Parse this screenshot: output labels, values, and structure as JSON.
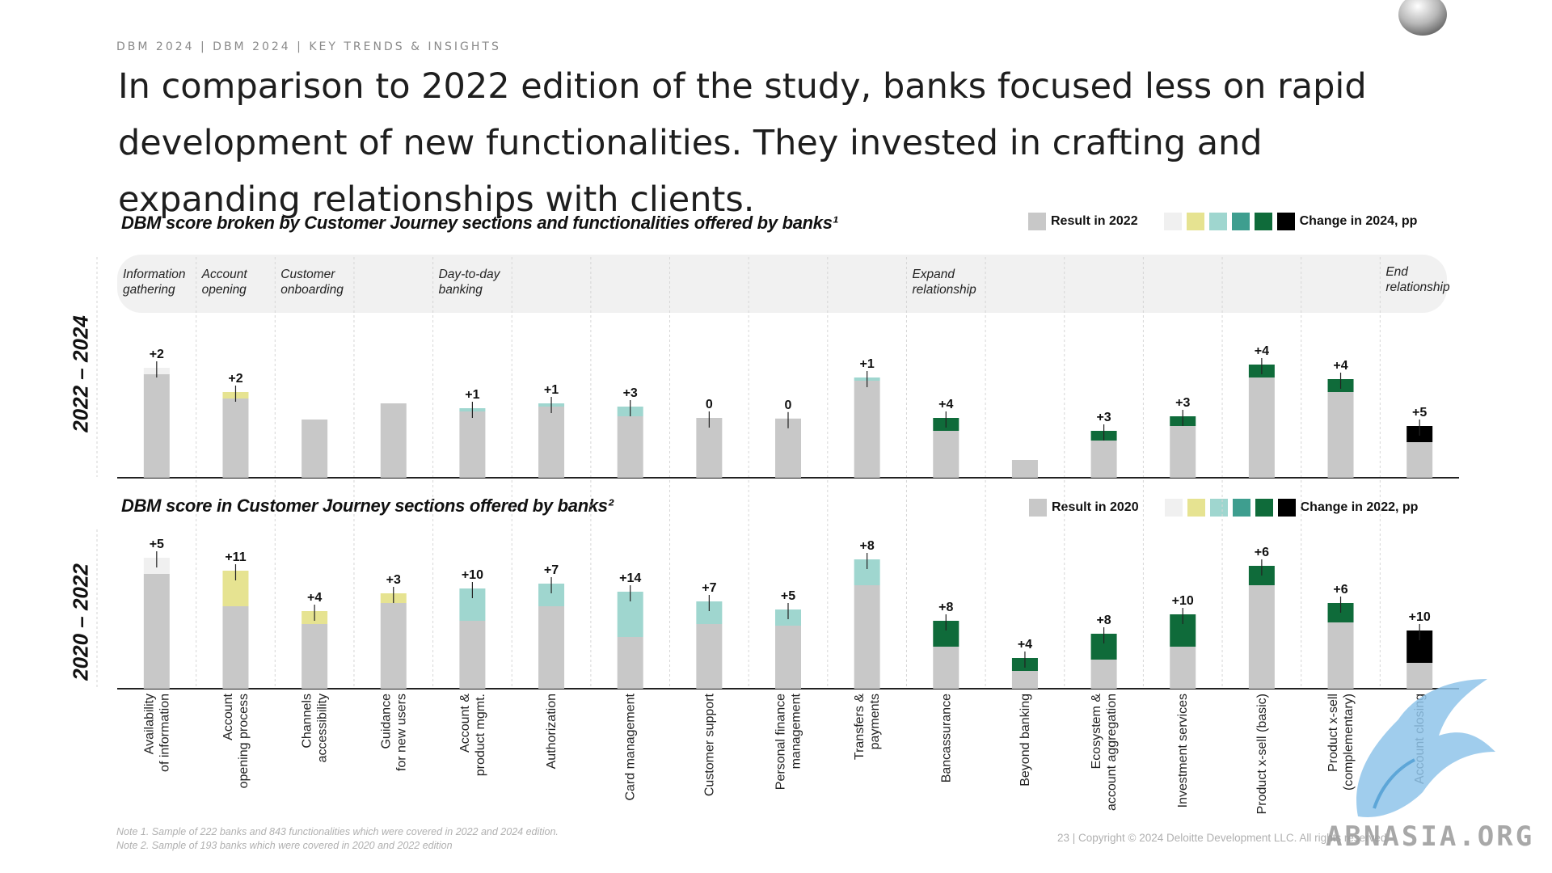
{
  "breadcrumb": "DBM 2024 | DBM 2024 | KEY TRENDS & INSIGHTS",
  "headline": "In comparison to 2022 edition of the study, banks focused less on rapid development of new functionalities. They invested in crafting and expanding relationships with clients.",
  "colors": {
    "base": "#c8c8c8",
    "scale": [
      "#f0f0f0",
      "#e6e391",
      "#9fd6cf",
      "#3e9e8f",
      "#0f6b3a",
      "#000000"
    ],
    "section_band": "#f1f1f1",
    "axis": "#222222"
  },
  "sections": [
    {
      "label": "Information gathering"
    },
    {
      "label": "Account opening"
    },
    {
      "label": "Customer onboarding"
    },
    {
      "label": "Day-to-day banking"
    },
    {
      "label": "Expand relationship"
    },
    {
      "label": "End relationship"
    }
  ],
  "categories": [
    "Availability of information",
    "Account opening process",
    "Channels accessibility",
    "Guidance for new users",
    "Account & product mgmt.",
    "Authorization",
    "Card management",
    "Customer support",
    "Personal finance management",
    "Transfers & payments",
    "Bancassurance",
    "Beyond banking",
    "Ecosystem & account aggregation",
    "Investment services",
    "Product x-sell (basic)",
    "Product x-sell (complementary)",
    "Account closing"
  ],
  "chart_data": [
    {
      "type": "bar",
      "title": "DBM score broken by Customer Journey sections and functionalities offered by banks¹",
      "period_label": "2022 – 2024",
      "legend": {
        "base": "Result in 2022",
        "change": "Change in 2024, pp"
      },
      "base_values": [
        32,
        24.5,
        18,
        23,
        20.5,
        22,
        19,
        18.5,
        18.3,
        30,
        14.5,
        5.5,
        11.5,
        16,
        31,
        26.5,
        11
      ],
      "changes": [
        2,
        2,
        null,
        null,
        1,
        1,
        3,
        0,
        0,
        1,
        4,
        null,
        3,
        3,
        4,
        4,
        5
      ],
      "change_labels": [
        "+2",
        "+2",
        "",
        "",
        "+1",
        "+1",
        "+3",
        "0",
        "0",
        "+1",
        "+4",
        "",
        "+3",
        "+3",
        "+4",
        "+4",
        "+5"
      ],
      "change_color_index": [
        0,
        1,
        -1,
        -1,
        2,
        2,
        2,
        0,
        0,
        2,
        4,
        -1,
        4,
        4,
        4,
        4,
        5
      ],
      "ylim": [
        0,
        40
      ]
    },
    {
      "type": "bar",
      "title": "DBM score in Customer Journey sections offered by banks²",
      "period_label": "2020 – 2022",
      "legend": {
        "base": "Result in 2020",
        "change": "Change in 2022, pp"
      },
      "base_values": [
        35.5,
        25.5,
        20,
        26.5,
        21,
        25.5,
        16,
        20,
        19.5,
        32,
        13,
        5.5,
        9,
        13,
        32,
        20.5,
        8
      ],
      "changes": [
        5,
        11,
        4,
        3,
        10,
        7,
        14,
        7,
        5,
        8,
        8,
        4,
        8,
        10,
        6,
        6,
        10
      ],
      "change_labels": [
        "+5",
        "+11",
        "+4",
        "+3",
        "+10",
        "+7",
        "+14",
        "+7",
        "+5",
        "+8",
        "+8",
        "+4",
        "+8",
        "+10",
        "+6",
        "+6",
        "+10"
      ],
      "change_color_index": [
        0,
        1,
        1,
        1,
        2,
        2,
        2,
        2,
        2,
        2,
        4,
        4,
        4,
        4,
        4,
        4,
        5
      ],
      "ylim": [
        0,
        50
      ]
    }
  ],
  "notes": [
    "Note 1. Sample of 222 banks and 843 functionalities which were covered in 2022 and 2024 edition.",
    "Note 2. Sample of 193 banks which were covered in 2020 and 2022 edition"
  ],
  "footer": "23 | Copyright © 2024 Deloitte Development LLC. All rights reserved.",
  "watermark": "ABNASIA.ORG"
}
